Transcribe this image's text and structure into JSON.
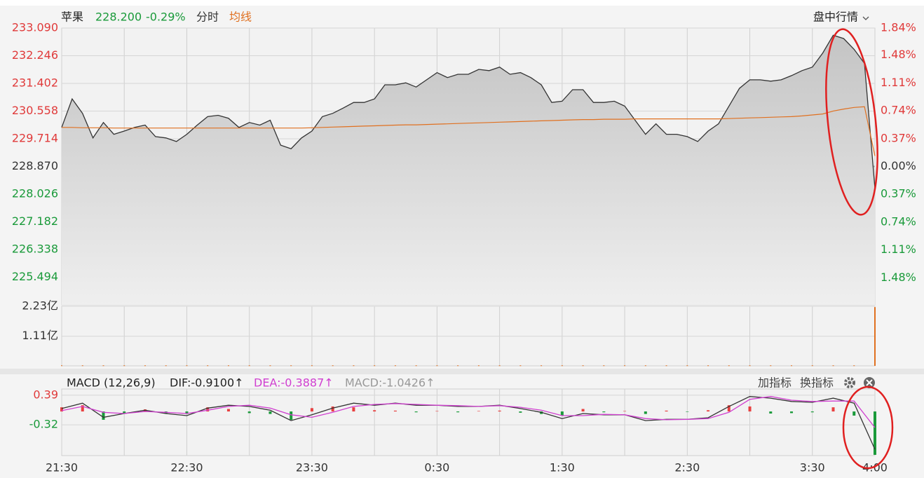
{
  "chart_data": [
    {
      "type": "line",
      "title": "苹果",
      "last_price": "228.200",
      "change": "-0.29%",
      "menu": "盘中行情",
      "x": [
        0,
        5,
        10,
        15,
        20,
        25,
        30,
        35,
        40,
        45,
        50,
        55,
        60,
        65,
        70,
        75,
        80,
        85,
        90,
        95,
        100,
        105,
        110,
        115,
        120,
        125,
        130,
        135,
        140,
        145,
        150,
        155,
        160,
        165,
        170,
        175,
        180,
        185,
        190,
        195,
        200,
        205,
        210,
        215,
        220,
        225,
        230,
        235,
        240,
        245,
        250,
        255,
        260,
        265,
        270,
        275,
        280,
        285,
        290,
        295,
        300,
        305,
        310,
        315,
        320,
        325,
        330,
        335,
        340,
        345,
        350,
        355,
        360,
        365,
        370,
        375,
        380,
        385,
        390
      ],
      "xlim": [
        0,
        390
      ],
      "xgrid": [
        30,
        60,
        90,
        120,
        150,
        180,
        210,
        240,
        270,
        300,
        330,
        360
      ],
      "series": [
        {
          "name": "分时",
          "color": "#333333",
          "area": true,
          "values": [
            230.06,
            230.93,
            230.49,
            229.74,
            230.21,
            229.85,
            229.95,
            230.06,
            230.13,
            229.78,
            229.74,
            229.63,
            229.85,
            230.13,
            230.39,
            230.43,
            230.34,
            230.06,
            230.21,
            230.13,
            230.28,
            229.52,
            229.41,
            229.74,
            229.95,
            230.39,
            230.49,
            230.65,
            230.82,
            230.82,
            230.93,
            231.36,
            231.36,
            231.42,
            231.29,
            231.51,
            231.73,
            231.58,
            231.68,
            231.68,
            231.83,
            231.79,
            231.9,
            231.68,
            231.73,
            231.58,
            231.36,
            230.82,
            230.86,
            231.21,
            231.21,
            230.82,
            230.82,
            230.86,
            230.71,
            230.28,
            229.85,
            230.17,
            229.85,
            229.85,
            229.78,
            229.63,
            229.95,
            230.17,
            230.71,
            231.25,
            231.51,
            231.51,
            231.47,
            231.51,
            231.64,
            231.79,
            231.9,
            232.33,
            232.87,
            232.77,
            232.44,
            232.01,
            228.2
          ]
        },
        {
          "name": "均线",
          "color": "#e07020",
          "values": [
            230.06,
            230.06,
            230.05,
            230.05,
            230.05,
            230.04,
            230.04,
            230.04,
            230.04,
            230.04,
            230.04,
            230.04,
            230.04,
            230.04,
            230.04,
            230.04,
            230.04,
            230.04,
            230.04,
            230.04,
            230.04,
            230.04,
            230.04,
            230.04,
            230.05,
            230.06,
            230.07,
            230.08,
            230.09,
            230.1,
            230.11,
            230.12,
            230.13,
            230.14,
            230.14,
            230.15,
            230.16,
            230.17,
            230.18,
            230.19,
            230.2,
            230.21,
            230.22,
            230.23,
            230.24,
            230.25,
            230.26,
            230.27,
            230.28,
            230.29,
            230.3,
            230.3,
            230.31,
            230.31,
            230.31,
            230.32,
            230.32,
            230.32,
            230.32,
            230.32,
            230.32,
            230.32,
            230.32,
            230.32,
            230.33,
            230.34,
            230.35,
            230.36,
            230.37,
            230.38,
            230.39,
            230.41,
            230.44,
            230.47,
            230.56,
            230.62,
            230.67,
            230.69,
            229.19
          ]
        }
      ],
      "ylim": [
        224.65,
        233.09
      ],
      "yticks": [
        {
          "value": 233.09,
          "label": "233.090"
        },
        232.246,
        231.402,
        230.558,
        229.714,
        {
          "value": 228.87,
          "label": "228.870"
        },
        228.026,
        227.182,
        226.338,
        225.494
      ],
      "y2lim": [
        -1.84,
        1.84
      ],
      "y2ticks": [
        {
          "value": 1.84,
          "label": "1.84%"
        },
        {
          "value": 1.48,
          "label": "1.48%"
        },
        {
          "value": 1.11,
          "label": "1.11%"
        },
        {
          "value": 0.74,
          "label": "0.74%"
        },
        {
          "value": 0.37,
          "label": "0.37%"
        },
        {
          "value": 0,
          "label": "0.00%"
        },
        {
          "value": -0.37,
          "label": "0.37%"
        },
        {
          "value": -0.74,
          "label": "0.74%"
        },
        {
          "value": -1.11,
          "label": "1.11%"
        },
        {
          "value": -1.48,
          "label": "1.48%"
        }
      ],
      "up_color": "#e03a3a",
      "down_color": "#1a9a3a",
      "grid": true
    },
    {
      "type": "bar",
      "x": [
        0,
        10,
        20,
        30,
        40,
        50,
        60,
        70,
        80,
        90,
        100,
        110,
        120,
        130,
        140,
        150,
        160,
        170,
        180,
        190,
        200,
        210,
        220,
        230,
        240,
        250,
        260,
        270,
        280,
        290,
        300,
        310,
        320,
        330,
        340,
        350,
        360,
        370,
        380,
        390
      ],
      "xlim": [
        0,
        390
      ],
      "xgrid": [
        30,
        60,
        90,
        120,
        150,
        180,
        210,
        240,
        270,
        300,
        330,
        360
      ],
      "values": [
        0.02,
        0.02,
        0.02,
        0.02,
        0.02,
        0.02,
        0.02,
        0.02,
        0.02,
        0.02,
        0.02,
        0.02,
        0.02,
        0.02,
        0.02,
        0.02,
        0.02,
        0.02,
        0.02,
        0.02,
        0.02,
        0.02,
        0.02,
        0.02,
        0.02,
        0.02,
        0.02,
        0.02,
        0.02,
        0.02,
        0.02,
        0.02,
        0.02,
        0.02,
        0.02,
        0.02,
        0.02,
        0.02,
        0.02,
        2.2
      ],
      "color": "#e07020",
      "ylim": [
        0,
        2.23
      ],
      "yticks": [
        {
          "value": 2.23,
          "label": "2.23亿"
        },
        {
          "value": 1.11,
          "label": "1.11亿"
        }
      ]
    },
    {
      "type": "macd",
      "title": "MACD (12,26,9)",
      "buttons": [
        "加指标",
        "换指标"
      ],
      "x": [
        0,
        10,
        20,
        30,
        40,
        50,
        60,
        70,
        80,
        90,
        100,
        110,
        120,
        130,
        140,
        150,
        160,
        170,
        180,
        190,
        200,
        210,
        220,
        230,
        240,
        250,
        260,
        270,
        280,
        290,
        300,
        310,
        320,
        330,
        340,
        350,
        360,
        370,
        380,
        390
      ],
      "xlim": [
        0,
        390
      ],
      "xgrid": [
        30,
        60,
        90,
        120,
        150,
        180,
        210,
        240,
        270,
        300,
        330,
        360
      ],
      "xticks": [
        {
          "value": 0,
          "label": "21:30"
        },
        {
          "value": 60,
          "label": "22:30"
        },
        {
          "value": 120,
          "label": "23:30"
        },
        {
          "value": 180,
          "label": "0:30"
        },
        {
          "value": 240,
          "label": "1:30"
        },
        {
          "value": 300,
          "label": "2:30"
        },
        {
          "value": 360,
          "label": "3:30"
        },
        {
          "value": 390,
          "label": "4:00"
        }
      ],
      "series": [
        {
          "name": "MACD:-1.0426↑",
          "color": "#999999",
          "kind": "histogram",
          "up_color": "#e84040",
          "down_color": "#1a9a3a",
          "values": [
            0.1,
            0.15,
            -0.2,
            -0.05,
            0.05,
            -0.05,
            -0.06,
            0.1,
            0.06,
            -0.04,
            -0.06,
            -0.2,
            0.08,
            0.12,
            0.1,
            0.03,
            0.02,
            -0.02,
            0.01,
            -0.02,
            0.01,
            0.02,
            -0.03,
            -0.06,
            -0.1,
            0.06,
            -0.02,
            0.01,
            -0.06,
            0.02,
            -0.01,
            0.03,
            0.15,
            0.12,
            -0.05,
            -0.04,
            -0.02,
            0.1,
            -0.1,
            -1.0426
          ]
        },
        {
          "name": "DIF:-0.9100↑",
          "color": "#333333",
          "values": [
            0.07,
            0.2,
            -0.14,
            -0.05,
            0.03,
            -0.05,
            -0.1,
            0.08,
            0.15,
            0.12,
            0.03,
            -0.22,
            -0.08,
            0.08,
            0.2,
            0.15,
            0.2,
            0.15,
            0.15,
            0.12,
            0.12,
            0.15,
            0.07,
            -0.02,
            -0.17,
            -0.05,
            -0.08,
            -0.08,
            -0.22,
            -0.19,
            -0.19,
            -0.15,
            0.12,
            0.36,
            0.32,
            0.24,
            0.22,
            0.32,
            0.2,
            -0.91
          ]
        },
        {
          "name": "DEA:-0.3887↑",
          "color": "#d040d0",
          "values": [
            0.02,
            0.12,
            -0.02,
            -0.05,
            0,
            -0.02,
            -0.05,
            0.03,
            0.12,
            0.15,
            0.08,
            -0.08,
            -0.14,
            -0.02,
            0.12,
            0.17,
            0.19,
            0.17,
            0.15,
            0.14,
            0.12,
            0.14,
            0.1,
            0.03,
            -0.1,
            -0.1,
            -0.07,
            -0.08,
            -0.17,
            -0.2,
            -0.19,
            -0.17,
            -0.02,
            0.29,
            0.36,
            0.27,
            0.24,
            0.25,
            0.25,
            -0.3887
          ]
        }
      ],
      "ylim": [
        -1.06,
        0.54
      ],
      "yticks": [
        0.39,
        -0.32
      ],
      "up_color": "#e03a3a",
      "down_color": "#1a9a3a"
    }
  ]
}
